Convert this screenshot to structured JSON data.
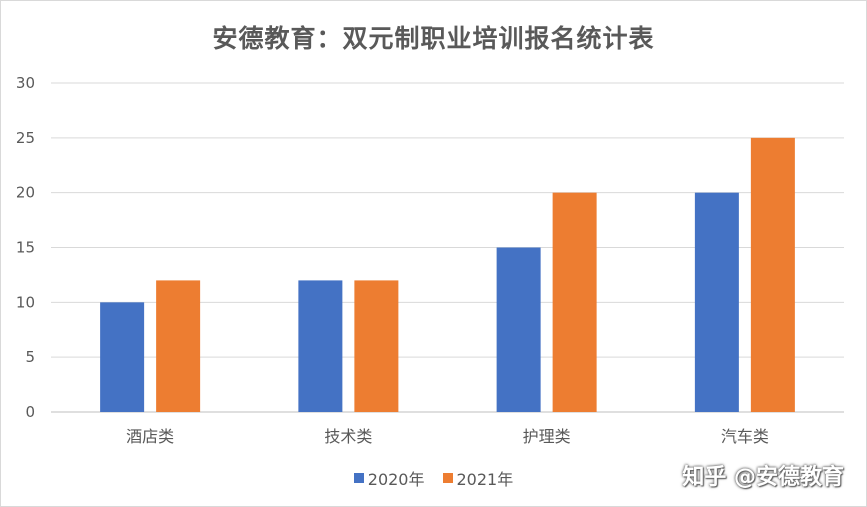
{
  "chart_data": {
    "type": "bar",
    "title": "安德教育：双元制职业培训报名统计表",
    "categories": [
      "酒店类",
      "技术类",
      "护理类",
      "汽车类"
    ],
    "series": [
      {
        "name": "2020年",
        "values": [
          10,
          12,
          15,
          20
        ],
        "color": "#4472c4"
      },
      {
        "name": "2021年",
        "values": [
          12,
          12,
          20,
          25
        ],
        "color": "#ed7d31"
      }
    ],
    "ylim": [
      0,
      30
    ],
    "yticks": [
      0,
      5,
      10,
      15,
      20,
      25,
      30
    ],
    "grid": true,
    "legend_position": "bottom"
  },
  "watermark": "知乎 @安德教育"
}
